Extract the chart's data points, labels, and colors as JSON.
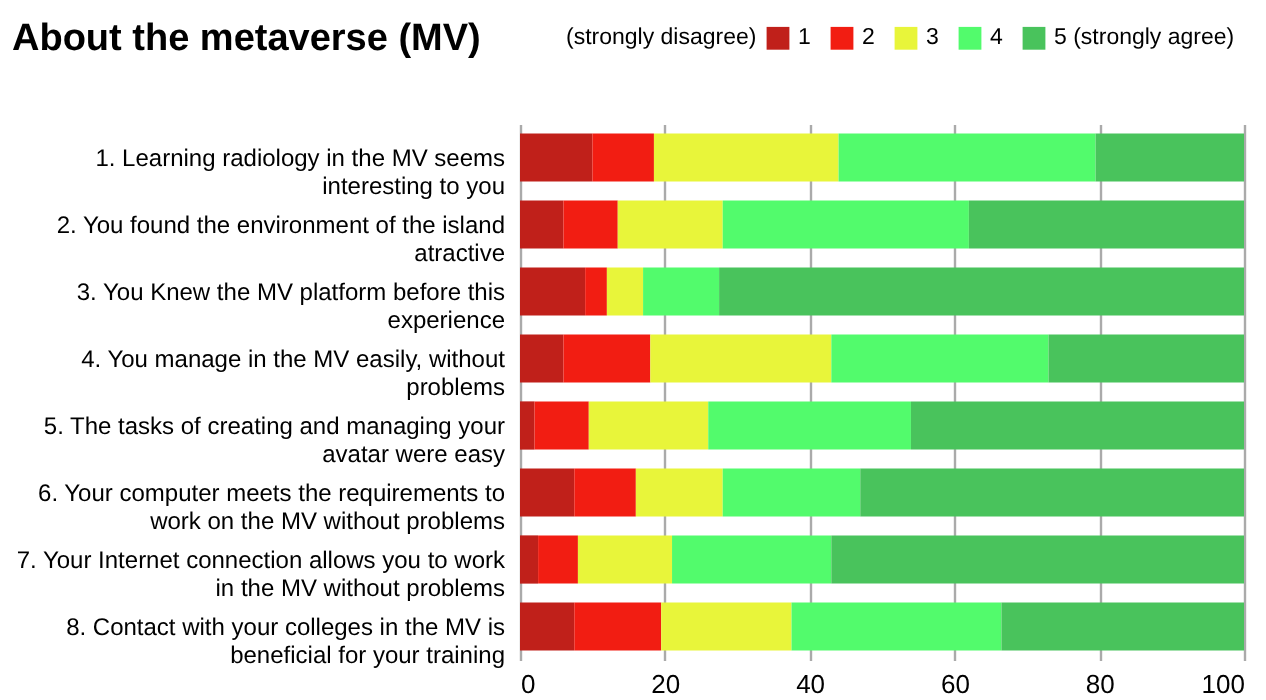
{
  "chart_data": {
    "type": "bar",
    "orientation": "horizontal",
    "stacked": true,
    "title": "About the metaverse (MV)",
    "legend_title": "(strongly disagree)",
    "legend": "top right",
    "grid": "x",
    "categories": [
      "1. Learning radiology in the MV seems interesting to you",
      "2. You found the environment of the island atractive",
      "3. You Knew the MV platform before this experience",
      "4. You manage in the MV easily, without problems",
      "5. The tasks of creating and managing your avatar were easy",
      "6. Your computer meets the requirements to work on the MV without problems",
      "7. Your Internet connection allows you to work in the MV without problems",
      "8. Contact with your colleges in the MV is beneficial for your training"
    ],
    "xlim": [
      0,
      100
    ],
    "xticks": [
      0,
      20,
      40,
      60,
      80,
      100
    ],
    "series": [
      {
        "name": "1",
        "color": "#c0201a",
        "values": [
          10,
          6,
          9,
          6,
          2,
          7.5,
          2.5,
          7.5
        ]
      },
      {
        "name": "2",
        "color": "#f21d12",
        "values": [
          8.5,
          7.5,
          3,
          12,
          7.5,
          8.5,
          5.5,
          12
        ]
      },
      {
        "name": "3",
        "color": "#e8f53a",
        "values": [
          25.5,
          14.5,
          5,
          25,
          16.5,
          12,
          13,
          18
        ]
      },
      {
        "name": "4",
        "color": "#52fb6c",
        "values": [
          35.5,
          34,
          10.5,
          30,
          28,
          19,
          22,
          29
        ]
      },
      {
        "name": "5 (strongly agree)",
        "color": "#49c35c",
        "values": [
          20.5,
          38,
          72.5,
          27,
          46,
          53,
          57,
          33.5
        ]
      }
    ]
  }
}
